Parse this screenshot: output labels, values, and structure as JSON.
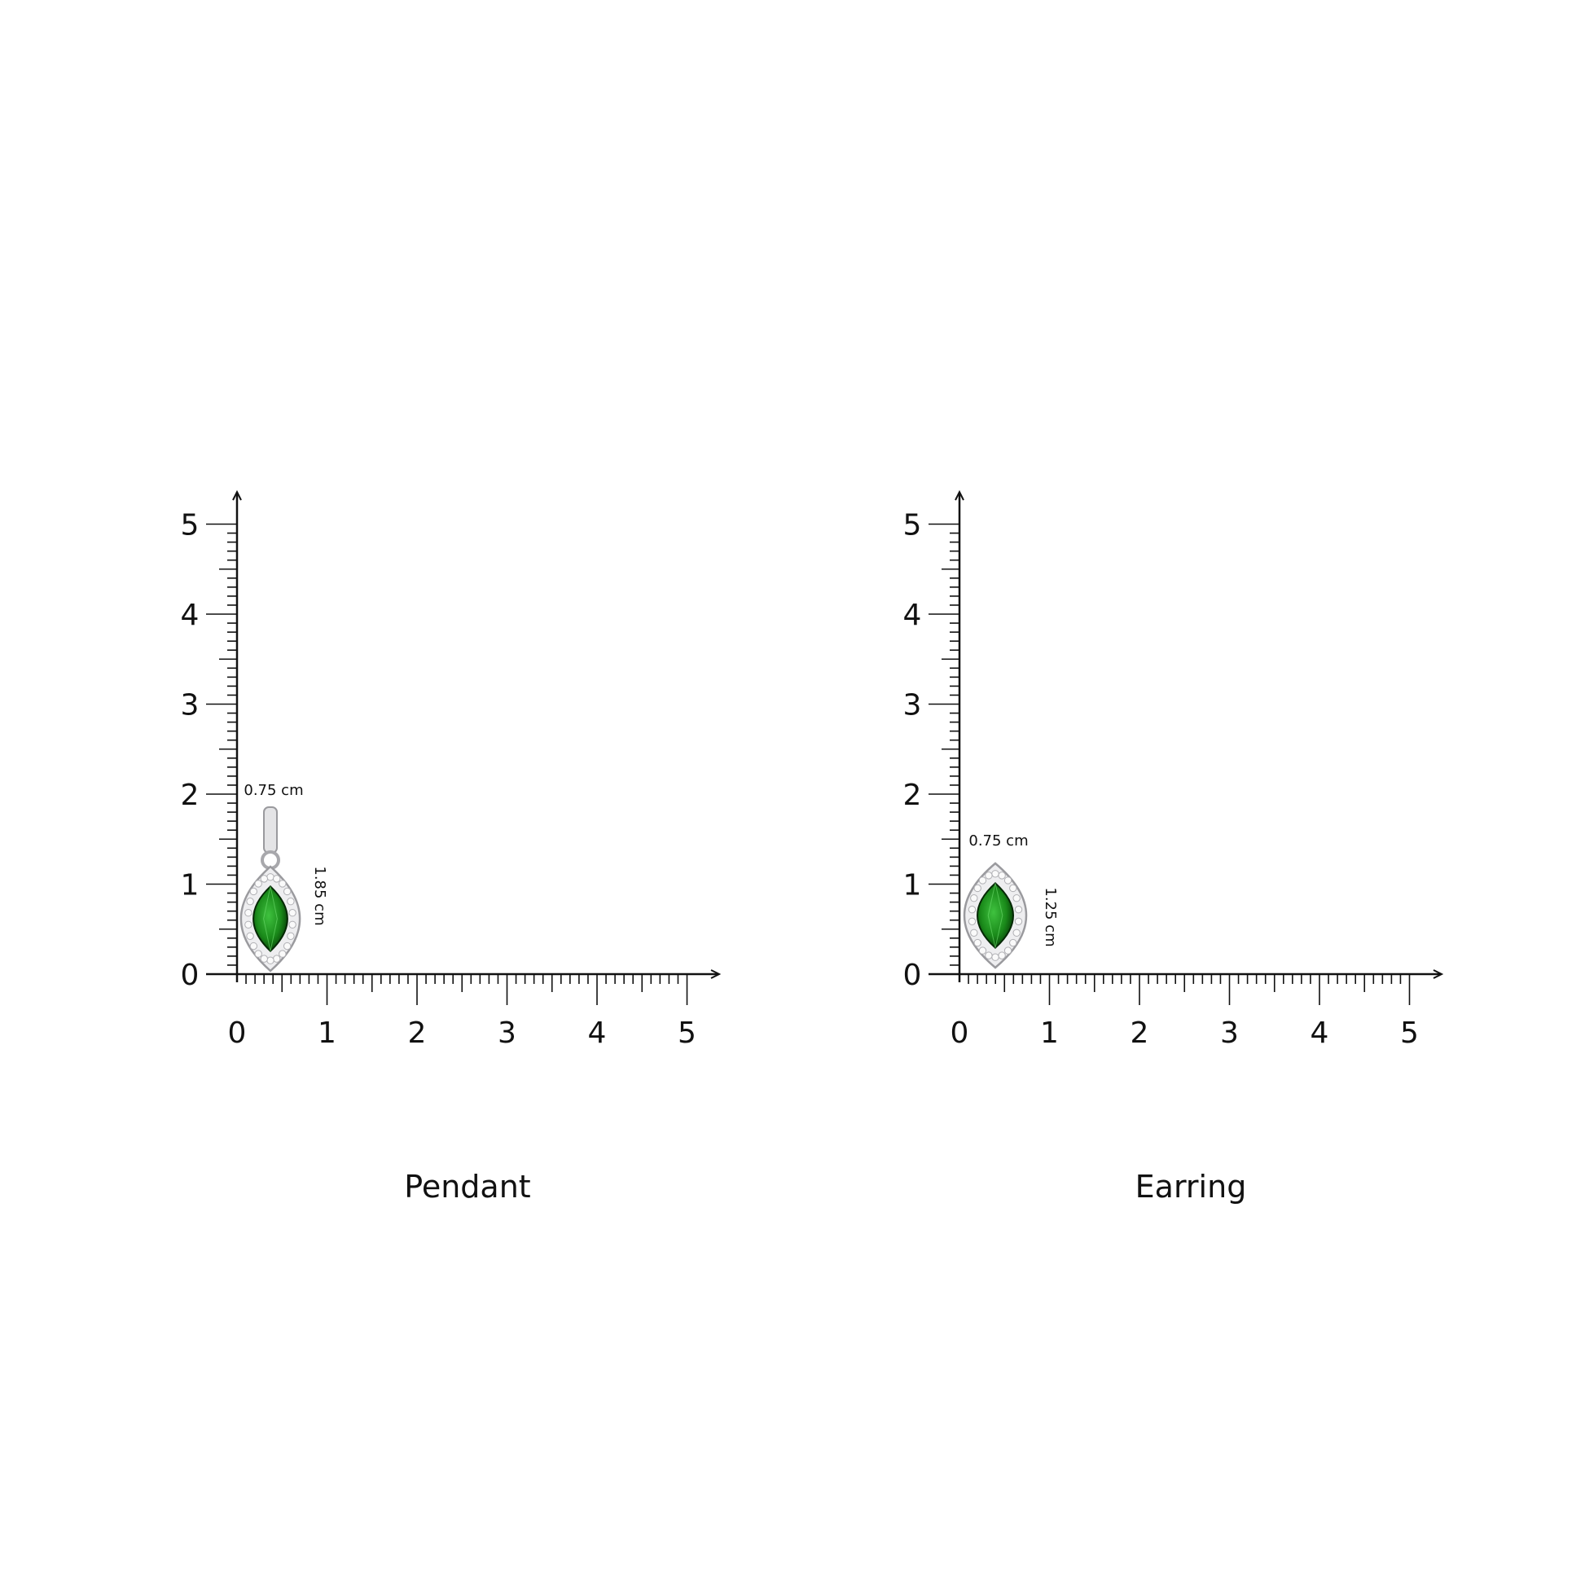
{
  "panels": [
    {
      "caption": "Pendant",
      "width_label": "0.75 cm",
      "height_label": "1.85 cm",
      "item": "pendant",
      "x_ticks": [
        "0",
        "1",
        "2",
        "3",
        "4",
        "5"
      ],
      "y_ticks": [
        "0",
        "1",
        "2",
        "3",
        "4",
        "5"
      ]
    },
    {
      "caption": "Earring",
      "width_label": "0.75 cm",
      "height_label": "1.25 cm",
      "item": "earring",
      "x_ticks": [
        "0",
        "1",
        "2",
        "3",
        "4",
        "5"
      ],
      "y_ticks": [
        "0",
        "1",
        "2",
        "3",
        "4",
        "5"
      ]
    }
  ],
  "colors": {
    "gem": "#1a8a1a",
    "metal": "#c8c8cc",
    "axis": "#111111"
  }
}
